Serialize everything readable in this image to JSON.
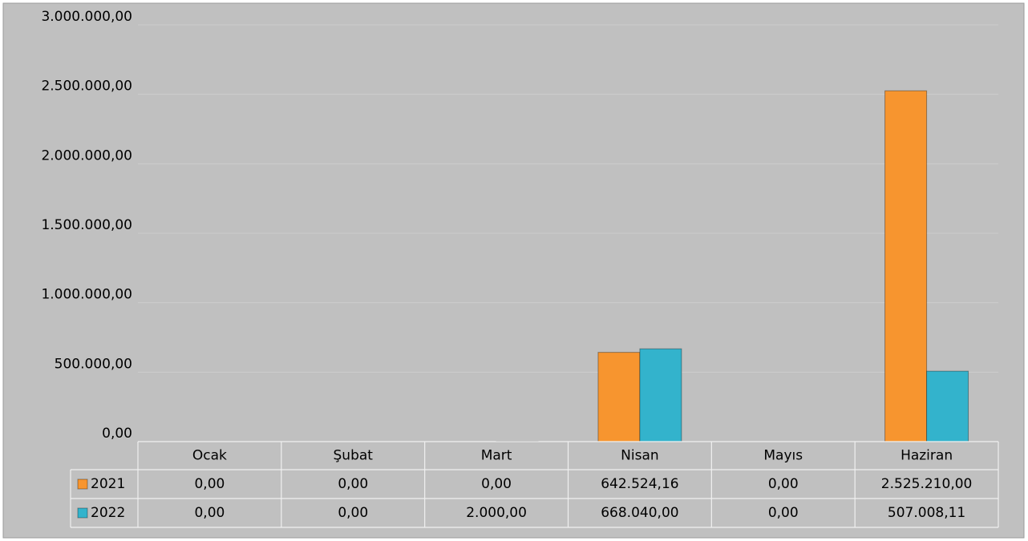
{
  "chart_data": {
    "type": "bar",
    "categories": [
      "Ocak",
      "Şubat",
      "Mart",
      "Nisan",
      "Mayıs",
      "Haziran"
    ],
    "series": [
      {
        "name": "2021",
        "color": "#f7952f",
        "values": [
          0,
          0,
          0,
          642524.16,
          0,
          2525210
        ],
        "value_labels": [
          "0,00",
          "0,00",
          "0,00",
          "642.524,16",
          "0,00",
          "2.525.210,00"
        ]
      },
      {
        "name": "2022",
        "color": "#33b3cc",
        "values": [
          0,
          0,
          2000,
          668040,
          0,
          507008.11
        ],
        "value_labels": [
          "0,00",
          "0,00",
          "2.000,00",
          "668.040,00",
          "0,00",
          "507.008,11"
        ]
      }
    ],
    "ylim": [
      0,
      3000000
    ],
    "yticks": [
      {
        "value": 0,
        "label": "0,00"
      },
      {
        "value": 500000,
        "label": "500.000,00"
      },
      {
        "value": 1000000,
        "label": "1.000.000,00"
      },
      {
        "value": 1500000,
        "label": "1.500.000,00"
      },
      {
        "value": 2000000,
        "label": "2.000.000,00"
      },
      {
        "value": 2500000,
        "label": "2.500.000,00"
      },
      {
        "value": 3000000,
        "label": "3.000.000,00"
      }
    ],
    "grid": true
  }
}
